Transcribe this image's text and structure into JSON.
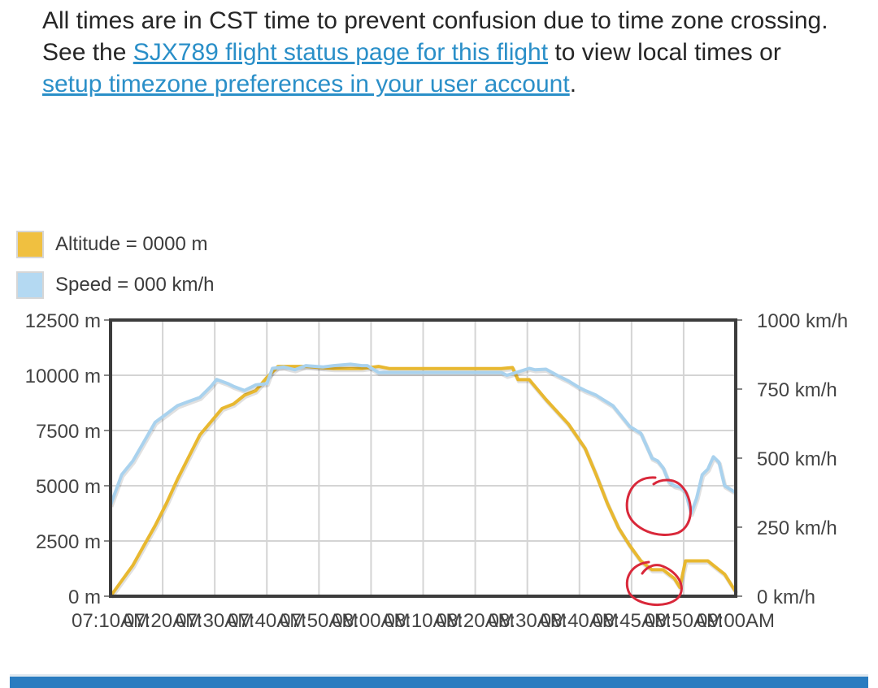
{
  "intro": {
    "part1": "All times are in CST time to prevent confusion due to time zone crossing. See the ",
    "link1": "SJX789 flight status page for this flight",
    "part2": " to view local times or ",
    "link2": "setup timezone preferences in your user account",
    "part3": "."
  },
  "legend": [
    {
      "label": "Altitude = 0000 m",
      "color": "#f0c040"
    },
    {
      "label": "Speed = 000 km/h",
      "color": "#b4d9f2"
    }
  ],
  "colors": {
    "altitude": "#e8b830",
    "speed": "#a9d2ee",
    "grid": "#d4d4d4",
    "frame": "#3c3c3c",
    "annotation": "#d9283a",
    "bottom_bar": "#2a7cc0"
  },
  "chart_data": {
    "type": "line",
    "x_tick_labels": [
      "07:10AM",
      "07:20AM",
      "07:30AM",
      "07:40AM",
      "07:50AM",
      "08:00AM",
      "08:10AM",
      "08:20AM",
      "08:30AM",
      "08:40AM",
      "08:45AM",
      "08:50AM",
      "09:00AM"
    ],
    "y_left_ticks": [
      "12500 m",
      "10000 m",
      "7500 m",
      "5000 m",
      "2500 m",
      "0 m"
    ],
    "y_right_ticks": [
      "1000 km/h",
      "750 km/h",
      "500 km/h",
      "250 km/h",
      "0 km/h"
    ],
    "y_left_lim": [
      0,
      12500
    ],
    "y_right_lim": [
      0,
      1000
    ],
    "x_lim_minutes": [
      0,
      112
    ],
    "grid": true,
    "legend_position": "top-left",
    "series": [
      {
        "name": "Altitude",
        "axis": "left",
        "points": [
          [
            0,
            0
          ],
          [
            2,
            700
          ],
          [
            4,
            1400
          ],
          [
            6,
            2300
          ],
          [
            8,
            3200
          ],
          [
            10,
            4200
          ],
          [
            12,
            5300
          ],
          [
            14,
            6300
          ],
          [
            16,
            7300
          ],
          [
            18,
            7900
          ],
          [
            20,
            8500
          ],
          [
            22,
            8700
          ],
          [
            24,
            9100
          ],
          [
            26,
            9300
          ],
          [
            28,
            9900
          ],
          [
            30,
            10400
          ],
          [
            35,
            10400
          ],
          [
            40,
            10300
          ],
          [
            45,
            10300
          ],
          [
            48,
            10400
          ],
          [
            50,
            10300
          ],
          [
            55,
            10300
          ],
          [
            60,
            10300
          ],
          [
            65,
            10300
          ],
          [
            70,
            10300
          ],
          [
            72,
            10350
          ],
          [
            73,
            9800
          ],
          [
            75,
            9800
          ],
          [
            78,
            8900
          ],
          [
            82,
            7800
          ],
          [
            85,
            6700
          ],
          [
            87,
            5500
          ],
          [
            89,
            4200
          ],
          [
            91,
            3100
          ],
          [
            93,
            2300
          ],
          [
            95,
            1600
          ],
          [
            97,
            1200
          ],
          [
            99,
            1200
          ],
          [
            101,
            800
          ],
          [
            102,
            400
          ],
          [
            103,
            1600
          ],
          [
            104,
            1600
          ],
          [
            107,
            1600
          ],
          [
            109,
            1200
          ],
          [
            110,
            1000
          ],
          [
            112,
            200
          ]
        ]
      },
      {
        "name": "Speed",
        "axis": "right",
        "points": [
          [
            0,
            330
          ],
          [
            2,
            440
          ],
          [
            4,
            490
          ],
          [
            6,
            560
          ],
          [
            8,
            630
          ],
          [
            10,
            660
          ],
          [
            12,
            690
          ],
          [
            14,
            705
          ],
          [
            16,
            720
          ],
          [
            18,
            760
          ],
          [
            19,
            785
          ],
          [
            21,
            770
          ],
          [
            22,
            760
          ],
          [
            24,
            745
          ],
          [
            26,
            765
          ],
          [
            28,
            770
          ],
          [
            29,
            825
          ],
          [
            31,
            830
          ],
          [
            33,
            820
          ],
          [
            35,
            835
          ],
          [
            38,
            830
          ],
          [
            40,
            835
          ],
          [
            43,
            840
          ],
          [
            45,
            835
          ],
          [
            46,
            835
          ],
          [
            48,
            810
          ],
          [
            50,
            810
          ],
          [
            55,
            810
          ],
          [
            60,
            810
          ],
          [
            65,
            810
          ],
          [
            70,
            810
          ],
          [
            71,
            800
          ],
          [
            73,
            812
          ],
          [
            75,
            825
          ],
          [
            76,
            820
          ],
          [
            78,
            822
          ],
          [
            80,
            800
          ],
          [
            82,
            780
          ],
          [
            84,
            755
          ],
          [
            85,
            745
          ],
          [
            87,
            728
          ],
          [
            88,
            715
          ],
          [
            90,
            690
          ],
          [
            92,
            640
          ],
          [
            93,
            615
          ],
          [
            95,
            590
          ],
          [
            97,
            500
          ],
          [
            98,
            490
          ],
          [
            99,
            465
          ],
          [
            100,
            415
          ],
          [
            101,
            400
          ],
          [
            102,
            395
          ],
          [
            103,
            380
          ],
          [
            104,
            300
          ],
          [
            105,
            355
          ],
          [
            106,
            440
          ],
          [
            107,
            460
          ],
          [
            108,
            505
          ],
          [
            109,
            485
          ],
          [
            110,
            400
          ],
          [
            112,
            375
          ]
        ]
      }
    ],
    "annotations": [
      "red circle around speed dip near 08:45AM",
      "red circle around altitude dip near 08:45AM"
    ]
  },
  "bottom_bar": {
    "color": "#2a7cc0"
  }
}
